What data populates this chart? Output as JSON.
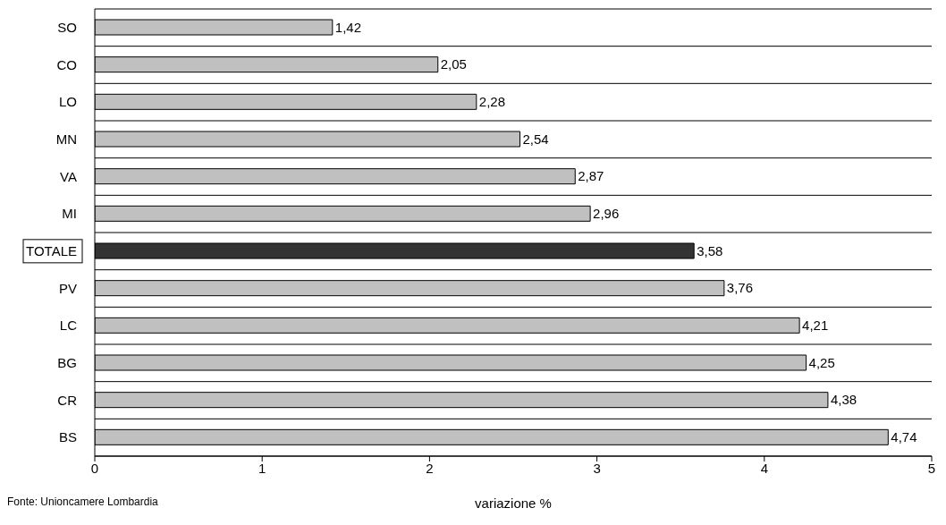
{
  "chart_data": {
    "type": "bar",
    "orientation": "horizontal",
    "xlabel": "variazione %",
    "categories": [
      "SO",
      "CO",
      "LO",
      "MN",
      "VA",
      "MI",
      "TOTALE",
      "PV",
      "LC",
      "BG",
      "CR",
      "BS"
    ],
    "values": [
      1.42,
      2.05,
      2.28,
      2.54,
      2.87,
      2.96,
      3.58,
      3.76,
      4.21,
      4.25,
      4.38,
      4.74
    ],
    "colors": [
      "#c0c0c0",
      "#c0c0c0",
      "#c0c0c0",
      "#c0c0c0",
      "#c0c0c0",
      "#c0c0c0",
      "#333333",
      "#c0c0c0",
      "#c0c0c0",
      "#c0c0c0",
      "#c0c0c0",
      "#c0c0c0"
    ],
    "value_labels": [
      "1,42",
      "2,05",
      "2,28",
      "2,54",
      "2,87",
      "2,96",
      "3,58",
      "3,76",
      "4,21",
      "4,25",
      "4,38",
      "4,74"
    ],
    "xlim": [
      0,
      5
    ],
    "xticks": [
      0,
      1,
      2,
      3,
      4,
      5
    ],
    "grid": "y",
    "annotations": [
      "Fonte: Unioncamere Lombardia"
    ]
  }
}
